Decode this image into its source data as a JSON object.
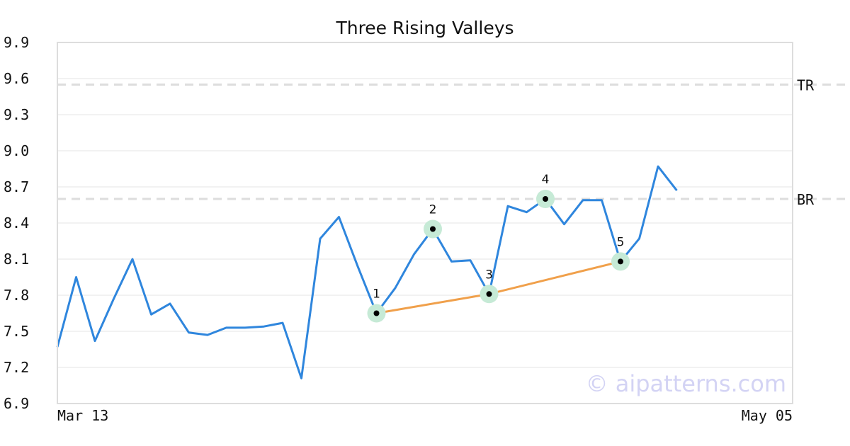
{
  "chart_data": {
    "type": "line",
    "title": "Three Rising Valleys",
    "xlabel": "",
    "ylabel": "",
    "ylim": [
      6.9,
      9.9
    ],
    "y_ticks": [
      "9.9",
      "9.6",
      "9.3",
      "9.0",
      "8.7",
      "8.4",
      "8.1",
      "7.8",
      "7.5",
      "7.2",
      "6.9"
    ],
    "x_tick_labels": [
      "Mar 13",
      "May 05"
    ],
    "grid": true,
    "series": [
      {
        "values": [
          7.37,
          7.95,
          7.42,
          7.77,
          8.1,
          7.64,
          7.73,
          7.49,
          7.47,
          7.53,
          7.53,
          7.54,
          7.57,
          7.11,
          8.27,
          8.45,
          8.04,
          7.65,
          7.86,
          8.14,
          8.35,
          8.08,
          8.09,
          7.81,
          8.54,
          8.49,
          8.6,
          8.39,
          8.59,
          8.59,
          8.08,
          8.27,
          8.87,
          8.67
        ]
      }
    ],
    "reference_lines": [
      {
        "label": "TR",
        "value": 9.55
      },
      {
        "label": "BR",
        "value": 8.6
      }
    ],
    "pattern_points": [
      {
        "label": "1",
        "index": 17,
        "value": 7.65
      },
      {
        "label": "2",
        "index": 20,
        "value": 8.35
      },
      {
        "label": "3",
        "index": 23,
        "value": 7.81
      },
      {
        "label": "4",
        "index": 26,
        "value": 8.6
      },
      {
        "label": "5",
        "index": 30,
        "value": 8.08
      }
    ],
    "trend_line_points": [
      "1",
      "3",
      "5"
    ],
    "colors": {
      "series": "#2f86dd",
      "trend": "#f0a04b",
      "highlight": "#c6ead6",
      "reference": "#dddddd",
      "grid": "#e6e6e6",
      "frame": "#dddddd",
      "watermark": "#d3d3f4"
    },
    "watermark": "© aipatterns.com"
  }
}
